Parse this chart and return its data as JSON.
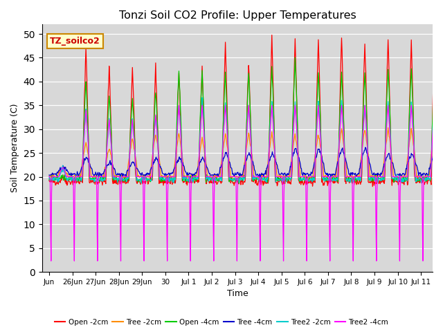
{
  "title": "Tonzi Soil CO2 Profile: Upper Temperatures",
  "xlabel": "Time",
  "ylabel": "Soil Temperature (C)",
  "ylim": [
    0,
    52
  ],
  "yticks": [
    0,
    5,
    10,
    15,
    20,
    25,
    30,
    35,
    40,
    45,
    50
  ],
  "bg_color": "#d8d8d8",
  "series": [
    {
      "label": "Open -2cm",
      "color": "#ff0000"
    },
    {
      "label": "Tree -2cm",
      "color": "#ff8c00"
    },
    {
      "label": "Open -4cm",
      "color": "#00cc00"
    },
    {
      "label": "Tree -4cm",
      "color": "#0000cc"
    },
    {
      "label": "Tree2 -2cm",
      "color": "#00cccc"
    },
    {
      "label": "Tree2 -4cm",
      "color": "#ff00ff"
    }
  ],
  "annotation_text": "TZ_soilco2",
  "annotation_bg": "#ffffcc",
  "annotation_border": "#cc8800",
  "xlabels": [
    "Jun",
    "26Jun",
    "27Jun",
    "28Jun",
    "29Jun",
    "30",
    "Jul 1",
    "Jul 2",
    "Jul 3",
    "Jul 4",
    "Jul 5",
    "Jul 6",
    "Jul 7",
    "Jul 8",
    "Jul 9",
    "Jul 10",
    "Jul 11"
  ]
}
